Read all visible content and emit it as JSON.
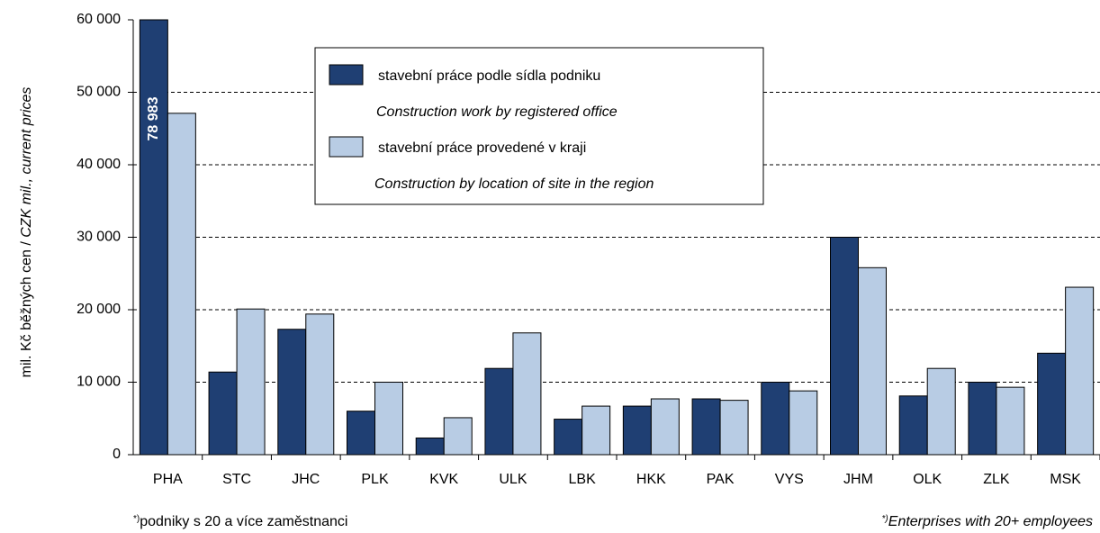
{
  "chart_data": {
    "type": "bar",
    "ylabel_cz": "mil. Kč běžných cen / ",
    "ylabel_en": "CZK mil., current prices",
    "categories": [
      "PHA",
      "STC",
      "JHC",
      "PLK",
      "KVK",
      "ULK",
      "LBK",
      "HKK",
      "PAK",
      "VYS",
      "JHM",
      "OLK",
      "ZLK",
      "MSK"
    ],
    "series": [
      {
        "name": "stavební práce podle sídla podniku",
        "name_en": "Construction work by registered office",
        "color": "#1f3f73",
        "values": [
          78983,
          11400,
          17300,
          6000,
          2300,
          11900,
          4900,
          6700,
          7700,
          10000,
          30000,
          8100,
          10000,
          14000
        ],
        "value_labels": [
          "78 983",
          null,
          null,
          null,
          null,
          null,
          null,
          null,
          null,
          null,
          null,
          null,
          null,
          null
        ]
      },
      {
        "name": "stavební práce  provedené v kraji",
        "name_en": "Construction by location of site in the region",
        "color": "#b8cce4",
        "values": [
          47100,
          20100,
          19400,
          10000,
          5100,
          16800,
          6700,
          7700,
          7500,
          8800,
          25800,
          11900,
          9300,
          23100
        ]
      }
    ],
    "ylim": [
      0,
      60000
    ],
    "yticks": [
      0,
      {
        "value": 10000,
        "label": "10 000"
      },
      {
        "value": 20000,
        "label": "20 000"
      },
      {
        "value": 30000,
        "label": "30 000"
      },
      {
        "value": 40000,
        "label": "40 000"
      },
      {
        "value": 50000,
        "label": "50 000"
      },
      {
        "value": 60000,
        "label": "60 000"
      }
    ],
    "grid": true,
    "footnote_marker": "*)",
    "footnote_cz": "podniky s 20 a více zaměstnanci",
    "footnote_en": "Enterprises with  20+ employees"
  }
}
